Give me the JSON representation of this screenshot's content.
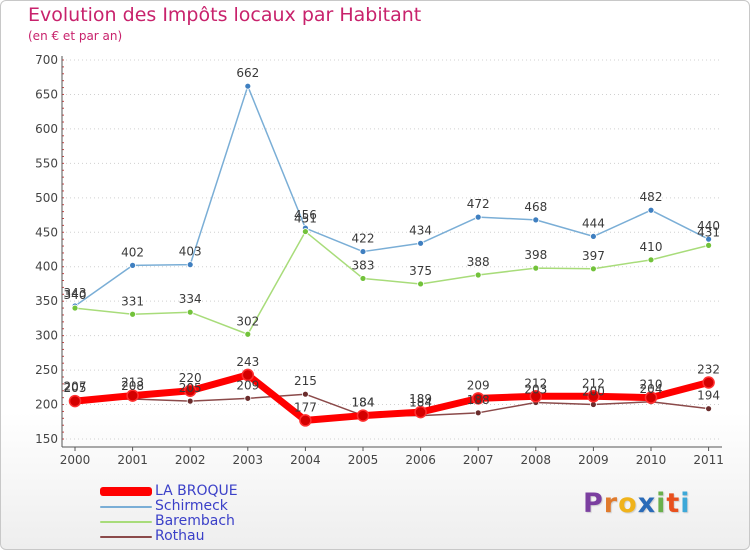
{
  "header": {
    "title": "Evolution des Impôts locaux par Habitant",
    "subtitle": "(en € et par an)"
  },
  "brand": {
    "logo_letters": [
      "P",
      "r",
      "o",
      "x",
      "i",
      "t",
      "i"
    ],
    "logo_colors": [
      "#7b3fa0",
      "#e07a2c",
      "#f0b31b",
      "#2a6bb8",
      "#6ab04c",
      "#e8501e",
      "#3da8d8"
    ]
  },
  "colors": {
    "title": "#c8226c",
    "legend_text": "#3b40c8",
    "axis": "#555555",
    "grid": "#d0d0d0"
  },
  "chart_data": {
    "type": "line",
    "title": "Evolution des Impôts locaux par Habitant",
    "subtitle": "(en € et par an)",
    "xlabel": "",
    "ylabel": "",
    "ylim": [
      150,
      700
    ],
    "yticks": [
      150,
      200,
      250,
      300,
      350,
      400,
      450,
      500,
      550,
      600,
      650,
      700
    ],
    "categories": [
      "2000",
      "2001",
      "2002",
      "2003",
      "2004",
      "2005",
      "2006",
      "2007",
      "2008",
      "2009",
      "2010",
      "2011"
    ],
    "legend_position": "bottom-left",
    "series": [
      {
        "name": "LA BROQUE",
        "color": "#ff0000",
        "point_color": "#d40000",
        "width": 7,
        "point_r": 5.5,
        "values": [
          205,
          213,
          220,
          243,
          177,
          184,
          189,
          209,
          212,
          212,
          210,
          232
        ]
      },
      {
        "name": "Schirmeck",
        "color": "#7aaed6",
        "point_color": "#3f7fc0",
        "width": 1.5,
        "point_r": 3,
        "values": [
          343,
          402,
          403,
          662,
          456,
          422,
          434,
          472,
          468,
          444,
          482,
          440
        ]
      },
      {
        "name": "Barembach",
        "color": "#a8dc7a",
        "point_color": "#72c23a",
        "width": 1.5,
        "point_r": 3,
        "values": [
          340,
          331,
          334,
          302,
          451,
          383,
          375,
          388,
          398,
          397,
          410,
          431
        ]
      },
      {
        "name": "Rothau",
        "color": "#8b4a4a",
        "point_color": "#6a2c2c",
        "width": 1.5,
        "point_r": 3,
        "values": [
          207,
          208,
          205,
          209,
          215,
          184,
          184,
          188,
          203,
          200,
          204,
          194
        ]
      }
    ]
  }
}
